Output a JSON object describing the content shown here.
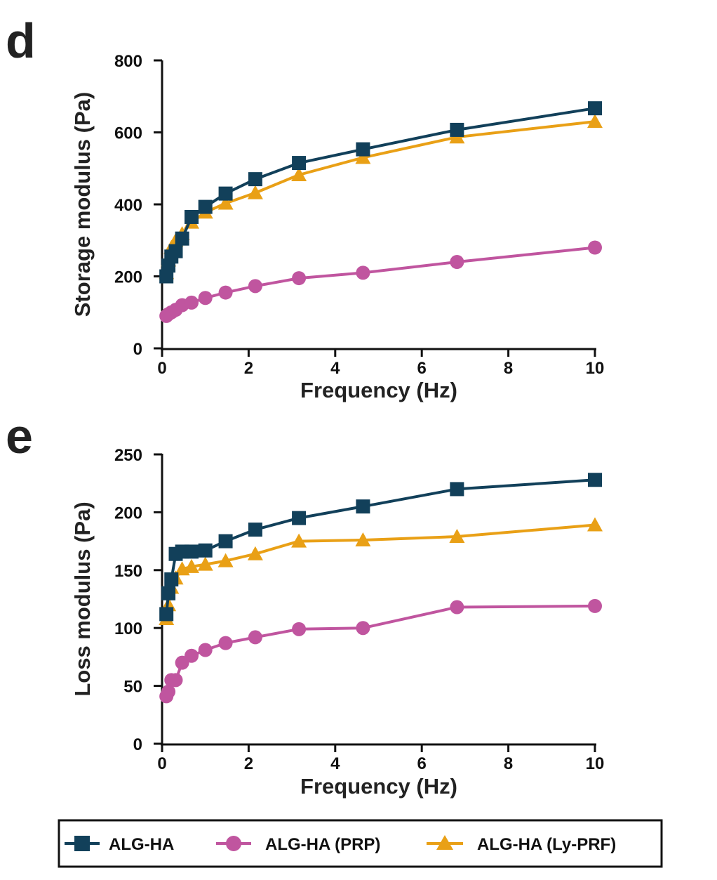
{
  "chart_data": [
    {
      "panel": "d",
      "type": "line",
      "xlabel": "Frequency (Hz)",
      "ylabel": "Storage modulus (Pa)",
      "xlim": [
        0,
        10
      ],
      "ylim": [
        0,
        800
      ],
      "xticks": [
        "0",
        "2",
        "4",
        "6",
        "8",
        "10"
      ],
      "yticks": [
        "0",
        "200",
        "400",
        "600",
        "800"
      ],
      "grid": false,
      "series": [
        {
          "name": "ALG-HA",
          "color": "#12405a",
          "marker": "square",
          "x": [
            0.1,
            0.147,
            0.215,
            0.316,
            0.464,
            0.681,
            1.0,
            1.468,
            2.154,
            3.162,
            4.642,
            6.813,
            10.0
          ],
          "y": [
            200,
            230,
            255,
            270,
            305,
            365,
            393,
            430,
            470,
            515,
            553,
            607,
            667
          ]
        },
        {
          "name": "ALG-HA (PRP)",
          "color": "#c0559f",
          "marker": "circle",
          "x": [
            0.1,
            0.147,
            0.215,
            0.316,
            0.464,
            0.681,
            1.0,
            1.468,
            2.154,
            3.162,
            4.642,
            6.813,
            10.0
          ],
          "y": [
            90,
            95,
            100,
            107,
            120,
            127,
            140,
            155,
            173,
            195,
            210,
            240,
            280
          ]
        },
        {
          "name": "ALG-HA (Ly-PRF)",
          "color": "#e9a016",
          "marker": "triangle",
          "x": [
            0.1,
            0.147,
            0.215,
            0.316,
            0.464,
            0.681,
            1.0,
            1.468,
            2.154,
            3.162,
            4.642,
            6.813,
            10.0
          ],
          "y": [
            210,
            245,
            280,
            300,
            318,
            350,
            378,
            403,
            432,
            482,
            530,
            587,
            630
          ]
        }
      ]
    },
    {
      "panel": "e",
      "type": "line",
      "xlabel": "Frequency (Hz)",
      "ylabel": "Loss modulus (Pa)",
      "xlim": [
        0,
        10
      ],
      "ylim": [
        0,
        250
      ],
      "xticks": [
        "0",
        "2",
        "4",
        "6",
        "8",
        "10"
      ],
      "yticks": [
        "0",
        "50",
        "100",
        "150",
        "200",
        "250"
      ],
      "grid": false,
      "series": [
        {
          "name": "ALG-HA",
          "color": "#12405a",
          "marker": "square",
          "x": [
            0.1,
            0.147,
            0.215,
            0.316,
            0.464,
            0.681,
            1.0,
            1.468,
            2.154,
            3.162,
            4.642,
            6.813,
            10.0
          ],
          "y": [
            112,
            130,
            142,
            164,
            166,
            166,
            167,
            175,
            185,
            195,
            205,
            220,
            228
          ]
        },
        {
          "name": "ALG-HA (PRP)",
          "color": "#c0559f",
          "marker": "circle",
          "x": [
            0.1,
            0.147,
            0.215,
            0.316,
            0.464,
            0.681,
            1.0,
            1.468,
            2.154,
            3.162,
            4.642,
            6.813,
            10.0
          ],
          "y": [
            41,
            45,
            55,
            55,
            70,
            76,
            81,
            87,
            92,
            99,
            100,
            118,
            119
          ]
        },
        {
          "name": "ALG-HA (Ly-PRF)",
          "color": "#e9a016",
          "marker": "triangle",
          "x": [
            0.1,
            0.147,
            0.215,
            0.316,
            0.464,
            0.681,
            1.0,
            1.468,
            2.154,
            3.162,
            4.642,
            6.813,
            10.0
          ],
          "y": [
            108,
            120,
            135,
            143,
            151,
            153,
            155,
            158,
            164,
            175,
            176,
            179,
            189
          ]
        }
      ]
    }
  ],
  "legend": {
    "placement": "bottom",
    "items": [
      {
        "label": "ALG-HA",
        "color": "#12405a",
        "marker": "square"
      },
      {
        "label": "ALG-HA (PRP)",
        "color": "#c0559f",
        "marker": "circle"
      },
      {
        "label": "ALG-HA (Ly-PRF)",
        "color": "#e9a016",
        "marker": "triangle"
      }
    ]
  }
}
